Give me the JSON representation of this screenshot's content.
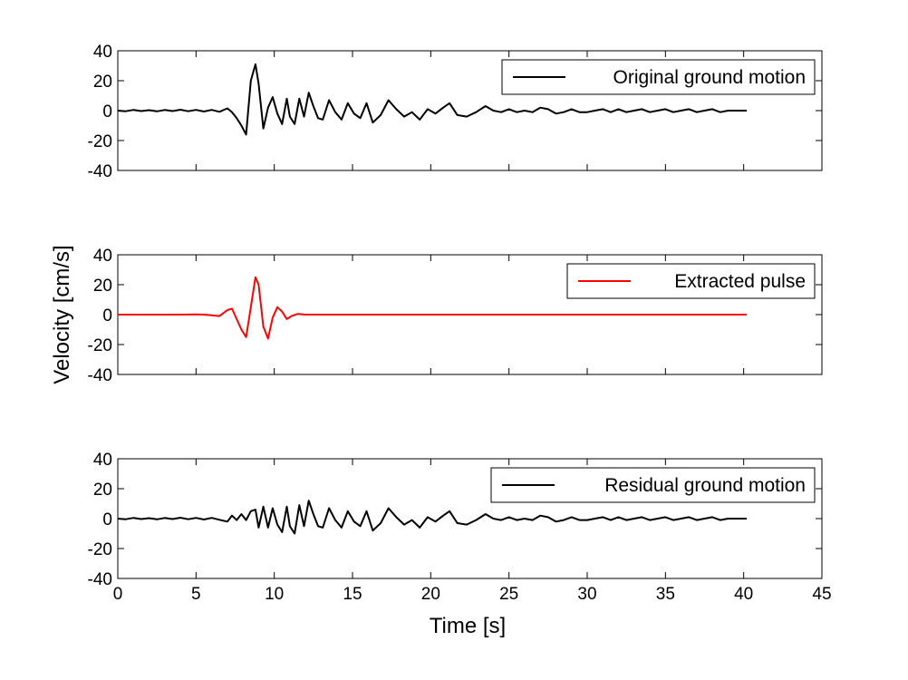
{
  "figure": {
    "ylabel": "Velocity [cm/s]",
    "xlabel": "Time [s]"
  },
  "chart_data": [
    {
      "type": "line",
      "xlim": [
        0,
        45
      ],
      "ylim": [
        -40,
        40
      ],
      "xticks": [
        "0",
        "5",
        "10",
        "15",
        "20",
        "25",
        "30",
        "35",
        "40",
        "45"
      ],
      "show_xtick_labels": false,
      "yticks": [
        "-40",
        "-20",
        "0",
        "20",
        "40"
      ],
      "grid": false,
      "legend": {
        "placement": "top-right",
        "entries": [
          "Original ground motion"
        ]
      },
      "series": [
        {
          "name": "Original ground motion",
          "color": "#000000",
          "x": [
            0,
            0.5,
            1,
            1.5,
            2,
            2.5,
            3,
            3.5,
            4,
            4.5,
            5,
            5.5,
            6,
            6.5,
            7,
            7.3,
            7.6,
            7.9,
            8.2,
            8.5,
            8.8,
            9.0,
            9.3,
            9.6,
            9.9,
            10.2,
            10.5,
            10.8,
            11.0,
            11.3,
            11.6,
            11.9,
            12.2,
            12.5,
            12.8,
            13.1,
            13.5,
            13.9,
            14.3,
            14.7,
            15.1,
            15.5,
            15.9,
            16.3,
            16.8,
            17.3,
            17.8,
            18.3,
            18.8,
            19.3,
            19.8,
            20.3,
            20.8,
            21.2,
            21.7,
            22.3,
            22.9,
            23.5,
            24.0,
            24.5,
            25.0,
            25.5,
            26.0,
            26.5,
            27.0,
            27.5,
            28.0,
            28.5,
            29.0,
            29.5,
            30.0,
            30.5,
            31.0,
            31.5,
            32.0,
            32.5,
            33.0,
            33.5,
            34.0,
            34.5,
            35.0,
            35.5,
            36.0,
            36.5,
            37.0,
            37.5,
            38.0,
            38.5,
            39.0,
            39.5,
            40.2
          ],
          "y": [
            0,
            -0.4,
            0.5,
            -0.3,
            0.3,
            -0.5,
            0.4,
            -0.3,
            0.6,
            -0.4,
            0.5,
            -0.6,
            0.5,
            -0.8,
            1.5,
            -1,
            -5,
            -10,
            -16,
            20,
            31,
            18,
            -12,
            2,
            9,
            -2,
            -9,
            8,
            -4,
            -9,
            8,
            -4,
            12,
            3,
            -5,
            -6,
            7,
            -1,
            -6,
            5,
            -2,
            -5,
            5,
            -8,
            -3,
            7,
            1,
            -4,
            -1,
            -6,
            1,
            -2,
            2,
            5,
            -3,
            -4,
            -1,
            3,
            0,
            -1,
            1,
            -1,
            0,
            -1,
            2,
            1,
            -2,
            -1,
            1,
            -1,
            -1,
            0,
            1,
            -1,
            1,
            -1,
            0,
            1,
            -1,
            0,
            1,
            -1,
            0,
            1,
            -1,
            0,
            1,
            -1,
            0,
            0,
            0
          ]
        }
      ]
    },
    {
      "type": "line",
      "xlim": [
        0,
        45
      ],
      "ylim": [
        -40,
        40
      ],
      "xticks": [
        "0",
        "5",
        "10",
        "15",
        "20",
        "25",
        "30",
        "35",
        "40",
        "45"
      ],
      "show_xtick_labels": false,
      "yticks": [
        "-40",
        "-20",
        "0",
        "20",
        "40"
      ],
      "grid": false,
      "legend": {
        "placement": "top-right",
        "entries": [
          "Extracted pulse"
        ]
      },
      "series": [
        {
          "name": "Extracted pulse",
          "color": "#ff0000",
          "x": [
            0,
            4,
            5,
            5.5,
            6,
            6.5,
            7,
            7.3,
            7.6,
            7.9,
            8.2,
            8.5,
            8.8,
            9.0,
            9.3,
            9.6,
            9.9,
            10.2,
            10.5,
            10.8,
            11.1,
            11.5,
            12,
            12.5,
            13,
            40.2
          ],
          "y": [
            0,
            0,
            0.2,
            0,
            -0.5,
            -1,
            3,
            4,
            -3,
            -10,
            -15,
            5,
            25,
            20,
            -8,
            -16,
            -2,
            5,
            2,
            -3,
            -1,
            0.5,
            0,
            0,
            0,
            0
          ]
        }
      ]
    },
    {
      "type": "line",
      "xlim": [
        0,
        45
      ],
      "ylim": [
        -40,
        40
      ],
      "xticks": [
        "0",
        "5",
        "10",
        "15",
        "20",
        "25",
        "30",
        "35",
        "40",
        "45"
      ],
      "show_xtick_labels": true,
      "yticks": [
        "-40",
        "-20",
        "0",
        "20",
        "40"
      ],
      "grid": false,
      "legend": {
        "placement": "top-right",
        "entries": [
          "Residual ground motion"
        ]
      },
      "series": [
        {
          "name": "Residual ground motion",
          "color": "#000000",
          "x": [
            0,
            0.5,
            1,
            1.5,
            2,
            2.5,
            3,
            3.5,
            4,
            4.5,
            5,
            5.5,
            6,
            6.5,
            7,
            7.3,
            7.6,
            7.9,
            8.2,
            8.5,
            8.8,
            9.0,
            9.3,
            9.6,
            9.9,
            10.2,
            10.5,
            10.8,
            11.0,
            11.3,
            11.6,
            11.9,
            12.2,
            12.5,
            12.8,
            13.1,
            13.5,
            13.9,
            14.3,
            14.7,
            15.1,
            15.5,
            15.9,
            16.3,
            16.8,
            17.3,
            17.8,
            18.3,
            18.8,
            19.3,
            19.8,
            20.3,
            20.8,
            21.2,
            21.7,
            22.3,
            22.9,
            23.5,
            24.0,
            24.5,
            25.0,
            25.5,
            26.0,
            26.5,
            27.0,
            27.5,
            28.0,
            28.5,
            29.0,
            29.5,
            30.0,
            30.5,
            31.0,
            31.5,
            32.0,
            32.5,
            33.0,
            33.5,
            34.0,
            34.5,
            35.0,
            35.5,
            36.0,
            36.5,
            37.0,
            37.5,
            38.0,
            38.5,
            39.0,
            39.5,
            40.2
          ],
          "y": [
            0,
            -0.4,
            0.5,
            -0.3,
            0.3,
            -0.5,
            0.4,
            -0.3,
            0.6,
            -0.4,
            0.5,
            -0.6,
            0.5,
            -0.8,
            -2,
            2,
            -1,
            3,
            -1,
            5,
            6,
            -6,
            8,
            -6,
            7,
            -4,
            -9,
            8,
            -5,
            -10,
            9,
            -5,
            12,
            3,
            -5,
            -6,
            7,
            -1,
            -6,
            5,
            -2,
            -5,
            5,
            -8,
            -3,
            7,
            1,
            -4,
            -1,
            -6,
            1,
            -2,
            2,
            5,
            -3,
            -4,
            -1,
            3,
            0,
            -1,
            1,
            -1,
            0,
            -1,
            2,
            1,
            -2,
            -1,
            1,
            -1,
            -1,
            0,
            1,
            -1,
            1,
            -1,
            0,
            1,
            -1,
            0,
            1,
            -1,
            0,
            1,
            -1,
            0,
            1,
            -1,
            0,
            0,
            0
          ]
        }
      ]
    }
  ]
}
